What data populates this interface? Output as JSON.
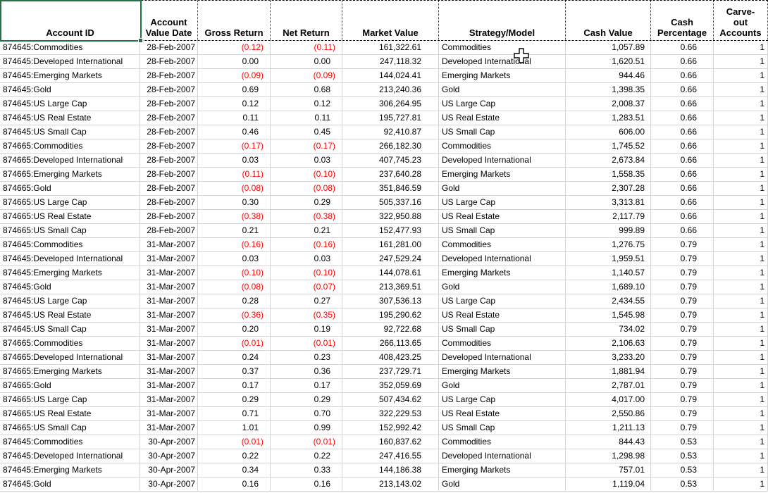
{
  "colors": {
    "selection_green": "#217346",
    "negative_red": "#ff0000",
    "gridline_gray": "#d4d4d4",
    "header_border_black": "#000000"
  },
  "icons": {
    "cursor": "excel-cell-cross-cursor",
    "fill_handle": "selection-fill-handle"
  },
  "sheet": {
    "selected_header_cell": "Account ID",
    "columns": [
      {
        "key": "account_id",
        "label": "Account ID"
      },
      {
        "key": "account_value_date",
        "label": "Account\nValue Date"
      },
      {
        "key": "gross_return",
        "label": "Gross Return"
      },
      {
        "key": "net_return",
        "label": "Net Return"
      },
      {
        "key": "market_value",
        "label": "Market Value"
      },
      {
        "key": "strategy_model",
        "label": "Strategy/Model"
      },
      {
        "key": "cash_value",
        "label": "Cash Value"
      },
      {
        "key": "cash_percentage",
        "label": "Cash\nPercentage"
      },
      {
        "key": "carve_out_accounts",
        "label": "Carve-\nout\nAccounts"
      }
    ],
    "rows": [
      [
        "874645:Commodities",
        "28-Feb-2007",
        "(0.12)",
        "(0.11)",
        "161,322.61",
        "Commodities",
        "1,057.89",
        "0.66",
        "1"
      ],
      [
        "874645:Developed International",
        "28-Feb-2007",
        "0.00",
        "0.00",
        "247,118.32",
        "Developed International",
        "1,620.51",
        "0.66",
        "1"
      ],
      [
        "874645:Emerging Markets",
        "28-Feb-2007",
        "(0.09)",
        "(0.09)",
        "144,024.41",
        "Emerging Markets",
        "944.46",
        "0.66",
        "1"
      ],
      [
        "874645:Gold",
        "28-Feb-2007",
        "0.69",
        "0.68",
        "213,240.36",
        "Gold",
        "1,398.35",
        "0.66",
        "1"
      ],
      [
        "874645:US Large Cap",
        "28-Feb-2007",
        "0.12",
        "0.12",
        "306,264.95",
        "US Large Cap",
        "2,008.37",
        "0.66",
        "1"
      ],
      [
        "874645:US Real Estate",
        "28-Feb-2007",
        "0.11",
        "0.11",
        "195,727.81",
        "US Real Estate",
        "1,283.51",
        "0.66",
        "1"
      ],
      [
        "874645:US Small Cap",
        "28-Feb-2007",
        "0.46",
        "0.45",
        "92,410.87",
        "US Small Cap",
        "606.00",
        "0.66",
        "1"
      ],
      [
        "874665:Commodities",
        "28-Feb-2007",
        "(0.17)",
        "(0.17)",
        "266,182.30",
        "Commodities",
        "1,745.52",
        "0.66",
        "1"
      ],
      [
        "874665:Developed International",
        "28-Feb-2007",
        "0.03",
        "0.03",
        "407,745.23",
        "Developed International",
        "2,673.84",
        "0.66",
        "1"
      ],
      [
        "874665:Emerging Markets",
        "28-Feb-2007",
        "(0.11)",
        "(0.10)",
        "237,640.28",
        "Emerging Markets",
        "1,558.35",
        "0.66",
        "1"
      ],
      [
        "874665:Gold",
        "28-Feb-2007",
        "(0.08)",
        "(0.08)",
        "351,846.59",
        "Gold",
        "2,307.28",
        "0.66",
        "1"
      ],
      [
        "874665:US Large Cap",
        "28-Feb-2007",
        "0.30",
        "0.29",
        "505,337.16",
        "US Large Cap",
        "3,313.81",
        "0.66",
        "1"
      ],
      [
        "874665:US Real Estate",
        "28-Feb-2007",
        "(0.38)",
        "(0.38)",
        "322,950.88",
        "US Real Estate",
        "2,117.79",
        "0.66",
        "1"
      ],
      [
        "874665:US Small Cap",
        "28-Feb-2007",
        "0.21",
        "0.21",
        "152,477.93",
        "US Small Cap",
        "999.89",
        "0.66",
        "1"
      ],
      [
        "874645:Commodities",
        "31-Mar-2007",
        "(0.16)",
        "(0.16)",
        "161,281.00",
        "Commodities",
        "1,276.75",
        "0.79",
        "1"
      ],
      [
        "874645:Developed International",
        "31-Mar-2007",
        "0.03",
        "0.03",
        "247,529.24",
        "Developed International",
        "1,959.51",
        "0.79",
        "1"
      ],
      [
        "874645:Emerging Markets",
        "31-Mar-2007",
        "(0.10)",
        "(0.10)",
        "144,078.61",
        "Emerging Markets",
        "1,140.57",
        "0.79",
        "1"
      ],
      [
        "874645:Gold",
        "31-Mar-2007",
        "(0.08)",
        "(0.07)",
        "213,369.51",
        "Gold",
        "1,689.10",
        "0.79",
        "1"
      ],
      [
        "874645:US Large Cap",
        "31-Mar-2007",
        "0.28",
        "0.27",
        "307,536.13",
        "US Large Cap",
        "2,434.55",
        "0.79",
        "1"
      ],
      [
        "874645:US Real Estate",
        "31-Mar-2007",
        "(0.36)",
        "(0.35)",
        "195,290.62",
        "US Real Estate",
        "1,545.98",
        "0.79",
        "1"
      ],
      [
        "874645:US Small Cap",
        "31-Mar-2007",
        "0.20",
        "0.19",
        "92,722.68",
        "US Small Cap",
        "734.02",
        "0.79",
        "1"
      ],
      [
        "874665:Commodities",
        "31-Mar-2007",
        "(0.01)",
        "(0.01)",
        "266,113.65",
        "Commodities",
        "2,106.63",
        "0.79",
        "1"
      ],
      [
        "874665:Developed International",
        "31-Mar-2007",
        "0.24",
        "0.23",
        "408,423.25",
        "Developed International",
        "3,233.20",
        "0.79",
        "1"
      ],
      [
        "874665:Emerging Markets",
        "31-Mar-2007",
        "0.37",
        "0.36",
        "237,729.71",
        "Emerging Markets",
        "1,881.94",
        "0.79",
        "1"
      ],
      [
        "874665:Gold",
        "31-Mar-2007",
        "0.17",
        "0.17",
        "352,059.69",
        "Gold",
        "2,787.01",
        "0.79",
        "1"
      ],
      [
        "874665:US Large Cap",
        "31-Mar-2007",
        "0.29",
        "0.29",
        "507,434.62",
        "US Large Cap",
        "4,017.00",
        "0.79",
        "1"
      ],
      [
        "874665:US Real Estate",
        "31-Mar-2007",
        "0.71",
        "0.70",
        "322,229.53",
        "US Real Estate",
        "2,550.86",
        "0.79",
        "1"
      ],
      [
        "874665:US Small Cap",
        "31-Mar-2007",
        "1.01",
        "0.99",
        "152,992.42",
        "US Small Cap",
        "1,211.13",
        "0.79",
        "1"
      ],
      [
        "874645:Commodities",
        "30-Apr-2007",
        "(0.01)",
        "(0.01)",
        "160,837.62",
        "Commodities",
        "844.43",
        "0.53",
        "1"
      ],
      [
        "874645:Developed International",
        "30-Apr-2007",
        "0.22",
        "0.22",
        "247,416.55",
        "Developed International",
        "1,298.98",
        "0.53",
        "1"
      ],
      [
        "874645:Emerging Markets",
        "30-Apr-2007",
        "0.34",
        "0.33",
        "144,186.38",
        "Emerging Markets",
        "757.01",
        "0.53",
        "1"
      ],
      [
        "874645:Gold",
        "30-Apr-2007",
        "0.16",
        "0.16",
        "213,143.02",
        "Gold",
        "1,119.04",
        "0.53",
        "1"
      ]
    ]
  }
}
